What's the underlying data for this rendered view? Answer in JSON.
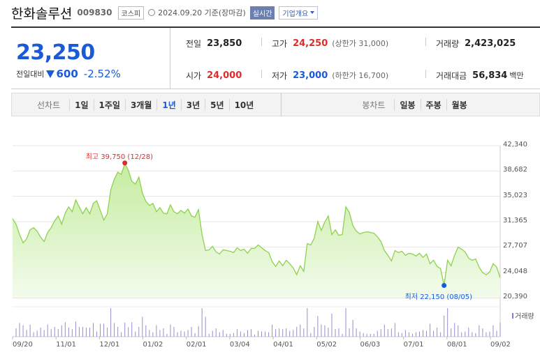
{
  "header": {
    "name": "한화솔루션",
    "code": "009830",
    "market": "코스피",
    "date": "2024.09.20 기준(장마감)",
    "live_label": "실시간",
    "corp_label": "기업개요"
  },
  "price": {
    "now": "23,250",
    "vs_label": "전일대비",
    "change": "600",
    "pct": "-2.52%"
  },
  "stats": {
    "prev_label": "전일",
    "prev": "23,850",
    "high_label": "고가",
    "high": "24,250",
    "upper": "(상한가 31,000)",
    "volume_label": "거래량",
    "volume": "2,423,025",
    "open_label": "시가",
    "open": "24,000",
    "low_label": "저가",
    "low": "23,000",
    "lower": "(하한가 16,700)",
    "value_label": "거래대금",
    "value": "56,834",
    "value_unit": "백만"
  },
  "tabs": {
    "line_title": "선차트",
    "line": [
      "1일",
      "1주일",
      "3개월",
      "1년",
      "3년",
      "5년",
      "10년"
    ],
    "active": "1년",
    "candle_title": "봉차트",
    "candle": [
      "일봉",
      "주봉",
      "월봉"
    ]
  },
  "chart_data": {
    "type": "area",
    "y_ticks": [
      "42,340",
      "38,682",
      "35,023",
      "31,365",
      "27,707",
      "24,048",
      "20,390"
    ],
    "ylim": [
      20390,
      42340
    ],
    "x_ticks": [
      "09/20",
      "11/01",
      "12/01",
      "01/02",
      "02/01",
      "03/04",
      "04/01",
      "05/02",
      "06/03",
      "07/01",
      "08/01",
      "09/02"
    ],
    "max_label": "최고 39,750 (12/28)",
    "min_label": "최저 22,150 (08/05)",
    "max_value": 39750,
    "min_value": 22150,
    "volume_label": "거래량",
    "series": [
      31800,
      31000,
      29500,
      28300,
      28900,
      30200,
      30500,
      30000,
      29100,
      28500,
      29800,
      30500,
      31500,
      32200,
      31000,
      32600,
      33500,
      32800,
      34500,
      33500,
      32500,
      33400,
      32500,
      34000,
      34400,
      33000,
      31600,
      32500,
      36000,
      37500,
      38500,
      38200,
      39750,
      38800,
      37200,
      36800,
      37800,
      35500,
      34300,
      33700,
      34000,
      32800,
      33400,
      32600,
      32500,
      33800,
      32800,
      32500,
      33000,
      32600,
      33200,
      32200,
      32000,
      33100,
      29500,
      27200,
      27300,
      27800,
      27000,
      26700,
      27300,
      27200,
      27100,
      26900,
      27600,
      27200,
      27400,
      26800,
      27500,
      27500,
      28000,
      27600,
      27200,
      26900,
      25600,
      24900,
      25700,
      25000,
      25800,
      25300,
      24700,
      23700,
      25000,
      24200,
      28200,
      28000,
      29000,
      31400,
      30100,
      31300,
      32200,
      29500,
      30200,
      29400,
      29500,
      33500,
      32700,
      30800,
      30000,
      29600,
      29800,
      29900,
      29800,
      29700,
      29200,
      28500,
      27200,
      26500,
      25700,
      27200,
      26900,
      27100,
      26500,
      26800,
      26700,
      26400,
      26800,
      26200,
      26700,
      25300,
      25800,
      24900,
      24600,
      22150,
      25800,
      25000,
      26500,
      27700,
      27400,
      27000,
      26100,
      25800,
      26000,
      24800,
      24000,
      23700,
      24100,
      25300,
      24800,
      23250
    ]
  }
}
